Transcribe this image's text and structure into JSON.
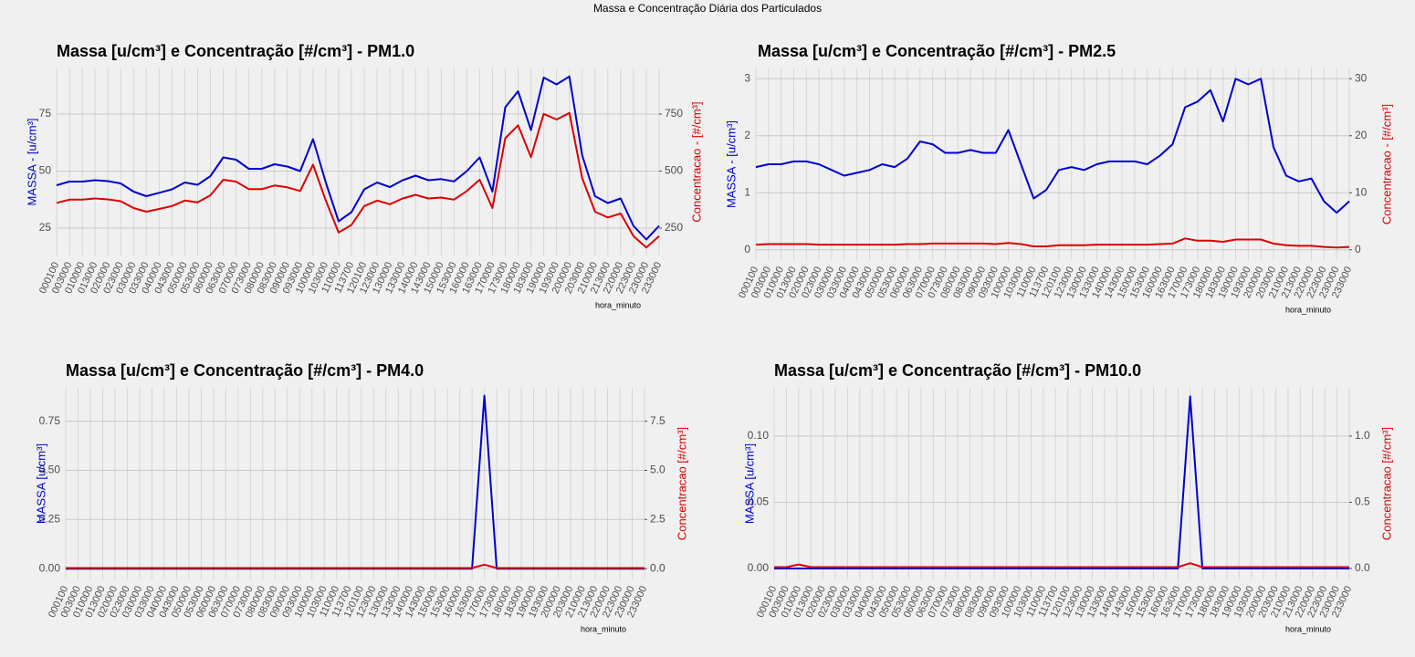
{
  "title": "Massa e Concentração Diária dos Particulados",
  "chart_data": [
    {
      "type": "line",
      "title": "Massa [u/cm³] e Concentração [#/cm³] - PM1.0",
      "ylabel": "MASSA - [u/cm³]",
      "y2label": "Concentracao - [#/cm³]",
      "xlabel": "hora_minuto",
      "categories": [
        "000100",
        "003000",
        "010000",
        "013000",
        "020000",
        "023000",
        "030000",
        "033000",
        "040000",
        "043000",
        "050000",
        "053000",
        "060000",
        "063000",
        "070000",
        "073000",
        "080000",
        "083000",
        "090000",
        "093000",
        "100000",
        "103000",
        "110000",
        "113700",
        "120100",
        "123000",
        "130000",
        "133000",
        "140000",
        "143000",
        "150000",
        "153000",
        "160000",
        "163000",
        "170000",
        "173000",
        "180000",
        "183000",
        "190000",
        "193000",
        "200000",
        "203000",
        "210000",
        "213000",
        "220000",
        "223000",
        "230000",
        "233000"
      ],
      "series": [
        {
          "color": "#0000cc",
          "values": [
            43.8,
            45.4,
            45.4,
            46,
            45.6,
            44.6,
            41,
            39,
            40.5,
            42,
            45,
            44,
            47.8,
            56,
            55,
            51,
            51,
            53,
            52,
            50,
            64,
            45,
            28,
            32,
            42,
            45,
            43,
            46,
            48,
            46,
            46.5,
            45.5,
            50,
            56,
            41,
            78,
            85,
            68,
            91,
            88,
            91.5,
            57,
            39,
            36,
            38,
            26,
            20,
            26
          ]
        },
        {
          "color": "#dd0000",
          "axis": "y2",
          "values": [
            361,
            375,
            375,
            380,
            376,
            368,
            338,
            322,
            334,
            347,
            371,
            363,
            394,
            462,
            454,
            421,
            421,
            437,
            429,
            413,
            528,
            371,
            231,
            264,
            347,
            371,
            355,
            380,
            396,
            380,
            384,
            375,
            413,
            462,
            338,
            644,
            701,
            561,
            751,
            726,
            755,
            470,
            322,
            297,
            314,
            215,
            165,
            215
          ]
        }
      ],
      "ylim": [
        13,
        95
      ],
      "yticks": [
        25,
        50,
        75
      ],
      "y2lim": [
        130,
        950
      ],
      "y2ticks": [
        250,
        500,
        750
      ],
      "grid": true
    },
    {
      "type": "line",
      "title": "Massa [u/cm³] e Concentração [#/cm³] - PM2.5",
      "ylabel": "MASSA - [u/cm³]",
      "y2label": "Concentracao - [#/cm³]",
      "xlabel": "hora_minuto",
      "categories": [
        "000100",
        "003000",
        "010000",
        "013000",
        "020000",
        "023000",
        "030000",
        "033000",
        "040000",
        "043000",
        "050000",
        "053000",
        "060000",
        "063000",
        "070000",
        "073000",
        "080000",
        "083000",
        "090000",
        "093000",
        "100000",
        "103000",
        "110000",
        "113700",
        "120100",
        "123000",
        "130000",
        "133000",
        "140000",
        "143000",
        "150000",
        "153000",
        "160000",
        "163000",
        "170000",
        "173000",
        "180000",
        "183000",
        "190000",
        "193000",
        "200000",
        "203000",
        "210000",
        "213000",
        "220000",
        "223000",
        "230000",
        "233000"
      ],
      "series": [
        {
          "color": "#0000cc",
          "values": [
            1.45,
            1.5,
            1.5,
            1.55,
            1.55,
            1.5,
            1.4,
            1.3,
            1.35,
            1.4,
            1.5,
            1.45,
            1.6,
            1.9,
            1.85,
            1.7,
            1.7,
            1.75,
            1.7,
            1.7,
            2.1,
            1.5,
            0.9,
            1.05,
            1.4,
            1.45,
            1.4,
            1.5,
            1.55,
            1.55,
            1.55,
            1.5,
            1.65,
            1.85,
            2.5,
            2.6,
            2.8,
            2.25,
            3.0,
            2.9,
            3.0,
            1.8,
            1.3,
            1.2,
            1.25,
            0.85,
            0.65,
            0.85
          ]
        },
        {
          "color": "#dd0000",
          "axis": "y2",
          "values": [
            0.9,
            1,
            1,
            1,
            1,
            0.9,
            0.9,
            0.9,
            0.9,
            0.9,
            0.9,
            0.9,
            1,
            1,
            1.1,
            1.1,
            1.1,
            1.1,
            1.1,
            1,
            1.2,
            1,
            0.6,
            0.6,
            0.8,
            0.8,
            0.8,
            0.9,
            0.9,
            0.9,
            0.9,
            0.9,
            1,
            1.1,
            2,
            1.6,
            1.6,
            1.4,
            1.8,
            1.8,
            1.8,
            1.1,
            0.8,
            0.7,
            0.7,
            0.5,
            0.4,
            0.5
          ]
        }
      ],
      "ylim": [
        -0.18,
        3.18
      ],
      "yticks": [
        0,
        1,
        2,
        3
      ],
      "y2lim": [
        -1.8,
        31.8
      ],
      "y2ticks": [
        0,
        10,
        20,
        30
      ],
      "grid": true
    },
    {
      "type": "line",
      "title": "Massa [u/cm³] e Concentração [#/cm³] - PM4.0",
      "ylabel": "MASSA [u/cm³]",
      "y2label": "Concentracao [#/cm³]",
      "xlabel": "hora_minuto",
      "categories": [
        "000100",
        "003000",
        "010000",
        "013000",
        "020000",
        "023000",
        "030000",
        "033000",
        "040000",
        "043000",
        "050000",
        "053000",
        "060000",
        "063000",
        "070000",
        "073000",
        "080000",
        "083000",
        "090000",
        "093000",
        "100000",
        "103000",
        "110000",
        "113700",
        "120100",
        "123000",
        "130000",
        "133000",
        "140000",
        "143000",
        "150000",
        "153000",
        "160000",
        "163000",
        "170000",
        "173000",
        "180000",
        "183000",
        "190000",
        "193000",
        "200000",
        "203000",
        "210000",
        "213000",
        "220000",
        "223000",
        "230000",
        "233000"
      ],
      "series": [
        {
          "color": "#0000cc",
          "values": [
            0,
            0,
            0,
            0,
            0,
            0,
            0,
            0,
            0,
            0,
            0,
            0,
            0,
            0,
            0,
            0,
            0,
            0,
            0,
            0,
            0,
            0,
            0,
            0,
            0,
            0,
            0,
            0,
            0,
            0,
            0,
            0,
            0,
            0,
            0.88,
            0,
            0,
            0,
            0,
            0,
            0,
            0,
            0,
            0,
            0,
            0,
            0,
            0
          ]
        },
        {
          "color": "#dd0000",
          "axis": "y2",
          "values": [
            0.03,
            0.03,
            0.03,
            0.03,
            0.03,
            0.03,
            0.03,
            0.03,
            0.03,
            0.03,
            0.03,
            0.03,
            0.03,
            0.03,
            0.03,
            0.03,
            0.03,
            0.03,
            0.03,
            0.03,
            0.03,
            0.03,
            0.03,
            0.03,
            0.03,
            0.03,
            0.03,
            0.03,
            0.03,
            0.03,
            0.03,
            0.03,
            0.03,
            0.03,
            0.2,
            0.03,
            0.03,
            0.03,
            0.03,
            0.03,
            0.03,
            0.03,
            0.03,
            0.03,
            0.03,
            0.03,
            0.03,
            0.03
          ]
        }
      ],
      "ylim": [
        -0.055,
        0.92
      ],
      "yticks": [
        {
          "value": 0,
          "label": "0.00"
        },
        {
          "value": 0.25,
          "label": "0.25"
        },
        {
          "value": 0.5,
          "label": "0.50"
        },
        {
          "value": 0.75,
          "label": "0.75"
        }
      ],
      "y2lim": [
        -0.55,
        9.2
      ],
      "y2ticks": [
        {
          "value": 0,
          "label": "0.0"
        },
        2.5,
        {
          "value": 5,
          "label": "5.0"
        },
        7.5
      ],
      "grid": true
    },
    {
      "type": "line",
      "title": "Massa [u/cm³] e Concentração [#/cm³] - PM10.0",
      "ylabel": "MASSA [u/cm³]",
      "y2label": "Concentracao [#/cm³]",
      "xlabel": "hora_minuto",
      "categories": [
        "000100",
        "003000",
        "010000",
        "013000",
        "020000",
        "023000",
        "030000",
        "033000",
        "040000",
        "043000",
        "050000",
        "053000",
        "060000",
        "063000",
        "070000",
        "073000",
        "080000",
        "083000",
        "090000",
        "093000",
        "100000",
        "103000",
        "110000",
        "113700",
        "120100",
        "123000",
        "130000",
        "133000",
        "140000",
        "143000",
        "150000",
        "153000",
        "160000",
        "163000",
        "170000",
        "173000",
        "180000",
        "183000",
        "190000",
        "193000",
        "200000",
        "203000",
        "210000",
        "213000",
        "220000",
        "223000",
        "230000",
        "233000"
      ],
      "series": [
        {
          "color": "#0000cc",
          "values": [
            0,
            0,
            0,
            0,
            0,
            0,
            0,
            0,
            0,
            0,
            0,
            0,
            0,
            0,
            0,
            0,
            0,
            0,
            0,
            0,
            0,
            0,
            0,
            0,
            0,
            0,
            0,
            0,
            0,
            0,
            0,
            0,
            0,
            0,
            0.13,
            0,
            0,
            0,
            0,
            0,
            0,
            0,
            0,
            0,
            0,
            0,
            0,
            0
          ]
        },
        {
          "color": "#dd0000",
          "axis": "y2",
          "values": [
            0.01,
            0.01,
            0.03,
            0.01,
            0.01,
            0.01,
            0.01,
            0.01,
            0.01,
            0.01,
            0.01,
            0.01,
            0.01,
            0.01,
            0.01,
            0.01,
            0.01,
            0.01,
            0.01,
            0.01,
            0.01,
            0.01,
            0.01,
            0.01,
            0.01,
            0.01,
            0.01,
            0.01,
            0.01,
            0.01,
            0.01,
            0.01,
            0.01,
            0.01,
            0.04,
            0.01,
            0.01,
            0.01,
            0.01,
            0.01,
            0.01,
            0.01,
            0.01,
            0.01,
            0.01,
            0.01,
            0.01,
            0.01
          ]
        }
      ],
      "ylim": [
        -0.0083,
        0.1365
      ],
      "yticks": [
        {
          "value": 0,
          "label": "0.00"
        },
        {
          "value": 0.05,
          "label": "0.05"
        },
        {
          "value": 0.1,
          "label": "0.10"
        }
      ],
      "y2lim": [
        -0.083,
        1.365
      ],
      "y2ticks": [
        {
          "value": 0,
          "label": "0.0"
        },
        0.5,
        {
          "value": 1,
          "label": "1.0"
        }
      ],
      "grid": true
    }
  ]
}
